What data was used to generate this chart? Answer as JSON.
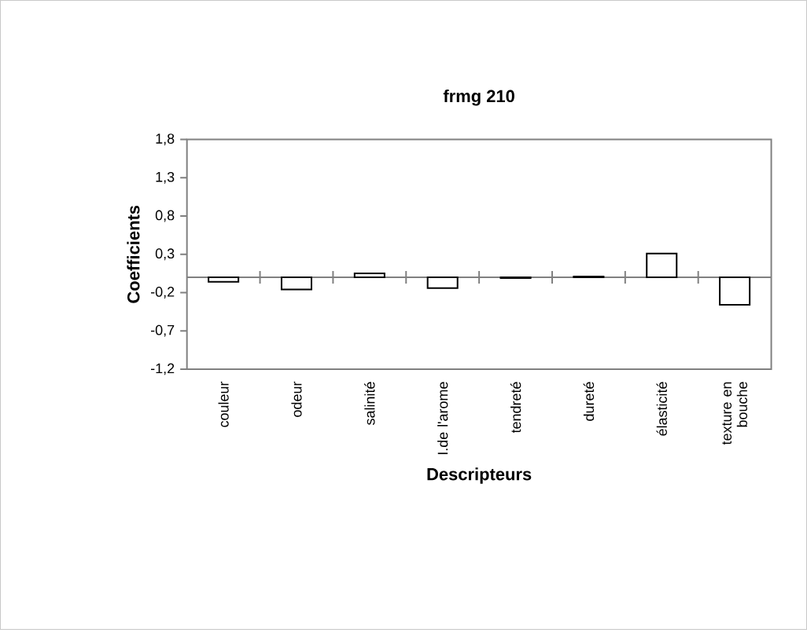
{
  "chart_data": {
    "type": "bar",
    "title": "frmg 210",
    "xlabel": "Descripteurs",
    "ylabel": "Coefficients",
    "categories": [
      "couleur",
      "odeur",
      "salinité",
      "I.de l'arome",
      "tendreté",
      "dureté",
      "élasticité",
      "texture en bouche"
    ],
    "values": [
      -0.06,
      -0.16,
      0.05,
      -0.14,
      -0.01,
      0.01,
      0.31,
      -0.36
    ],
    "color": "#ffffff",
    "ylim": [
      -1.2,
      1.8
    ],
    "yticks": [
      {
        "value": -1.2,
        "label": "-1,2"
      },
      {
        "value": -0.7,
        "label": "-0,7"
      },
      {
        "value": -0.2,
        "label": "-0,2"
      },
      {
        "value": 0.3,
        "label": "0,3"
      },
      {
        "value": 0.8,
        "label": "0,8"
      },
      {
        "value": 1.3,
        "label": "1,3"
      },
      {
        "value": 1.8,
        "label": "1,8"
      }
    ],
    "grid": false
  }
}
